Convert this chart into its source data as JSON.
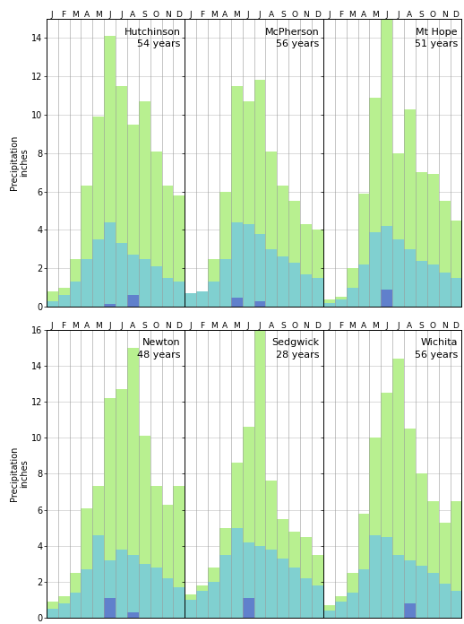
{
  "stations": [
    {
      "name": "Hutchinson",
      "years": "54 years",
      "row": 0,
      "col": 0,
      "ylim": [
        0,
        15
      ],
      "yticks": [
        0,
        2,
        4,
        6,
        8,
        10,
        12,
        14
      ],
      "green": [
        0.8,
        1.0,
        2.5,
        6.3,
        9.9,
        14.1,
        11.5,
        9.5,
        10.7,
        8.1,
        6.3,
        5.8
      ],
      "cyan": [
        0.3,
        0.6,
        1.3,
        2.5,
        3.5,
        4.4,
        3.3,
        2.7,
        2.5,
        2.1,
        1.5,
        1.3
      ],
      "blue": [
        0.0,
        0.0,
        0.0,
        0.0,
        0.0,
        0.15,
        0.0,
        0.6,
        0.0,
        0.0,
        0.0,
        0.0
      ]
    },
    {
      "name": "McPherson",
      "years": "56 years",
      "row": 0,
      "col": 1,
      "ylim": [
        0,
        15
      ],
      "yticks": [
        0,
        2,
        4,
        6,
        8,
        10,
        12,
        14
      ],
      "green": [
        0.5,
        0.8,
        2.5,
        6.0,
        11.5,
        10.7,
        11.8,
        8.1,
        6.3,
        5.5,
        4.3,
        4.0
      ],
      "cyan": [
        0.7,
        0.8,
        1.3,
        2.5,
        4.4,
        4.3,
        3.8,
        3.0,
        2.6,
        2.3,
        1.7,
        1.5
      ],
      "blue": [
        0.0,
        0.0,
        0.0,
        0.0,
        0.45,
        0.0,
        0.3,
        0.0,
        0.0,
        0.0,
        0.0,
        0.0
      ]
    },
    {
      "name": "Mt Hope",
      "years": "51 years",
      "row": 0,
      "col": 2,
      "ylim": [
        0,
        15
      ],
      "yticks": [
        0,
        2,
        4,
        6,
        8,
        10,
        12,
        14
      ],
      "green": [
        0.4,
        0.5,
        2.0,
        5.9,
        10.9,
        15.0,
        8.0,
        10.3,
        7.0,
        6.9,
        5.5,
        4.5
      ],
      "cyan": [
        0.2,
        0.4,
        1.0,
        2.2,
        3.9,
        4.2,
        3.5,
        3.0,
        2.4,
        2.2,
        1.8,
        1.5
      ],
      "blue": [
        0.0,
        0.0,
        0.0,
        0.0,
        0.0,
        0.9,
        0.0,
        0.0,
        0.0,
        0.0,
        0.0,
        0.0
      ]
    },
    {
      "name": "Newton",
      "years": "48 years",
      "row": 1,
      "col": 0,
      "ylim": [
        0,
        16
      ],
      "yticks": [
        0,
        2,
        4,
        6,
        8,
        10,
        12,
        14,
        16
      ],
      "green": [
        0.9,
        1.2,
        2.5,
        6.1,
        7.3,
        12.2,
        12.7,
        15.0,
        10.1,
        7.3,
        6.3,
        7.3
      ],
      "cyan": [
        0.5,
        0.8,
        1.4,
        2.7,
        4.6,
        3.2,
        3.8,
        3.5,
        3.0,
        2.8,
        2.2,
        1.7
      ],
      "blue": [
        0.0,
        0.0,
        0.0,
        0.0,
        0.0,
        1.1,
        0.0,
        0.3,
        0.0,
        0.0,
        0.0,
        0.0
      ]
    },
    {
      "name": "Sedgwick",
      "years": "28 years",
      "row": 1,
      "col": 1,
      "ylim": [
        0,
        16
      ],
      "yticks": [
        0,
        2,
        4,
        6,
        8,
        10,
        12,
        14,
        16
      ],
      "green": [
        1.3,
        1.8,
        2.8,
        5.0,
        8.6,
        10.6,
        16.7,
        7.6,
        5.5,
        4.8,
        4.5,
        3.5
      ],
      "cyan": [
        1.0,
        1.5,
        2.0,
        3.5,
        5.0,
        4.2,
        4.0,
        3.8,
        3.3,
        2.8,
        2.2,
        1.8
      ],
      "blue": [
        0.0,
        0.0,
        0.0,
        0.0,
        0.0,
        1.1,
        0.0,
        0.0,
        0.0,
        0.0,
        0.0,
        0.0
      ]
    },
    {
      "name": "Wichita",
      "years": "56 years",
      "row": 1,
      "col": 2,
      "ylim": [
        0,
        16
      ],
      "yticks": [
        0,
        2,
        4,
        6,
        8,
        10,
        12,
        14,
        16
      ],
      "green": [
        0.7,
        1.2,
        2.5,
        5.8,
        10.0,
        12.5,
        14.4,
        10.5,
        8.0,
        6.5,
        5.3,
        6.5
      ],
      "cyan": [
        0.4,
        0.9,
        1.4,
        2.7,
        4.6,
        4.5,
        3.5,
        3.2,
        2.9,
        2.5,
        1.9,
        1.5
      ],
      "blue": [
        0.0,
        0.0,
        0.0,
        0.0,
        0.0,
        0.0,
        0.0,
        0.8,
        0.0,
        0.0,
        0.0,
        0.0
      ]
    }
  ],
  "months": [
    "J",
    "F",
    "M",
    "A",
    "M",
    "J",
    "J",
    "A",
    "S",
    "O",
    "N",
    "D"
  ],
  "green_color": "#b8f090",
  "cyan_color": "#80d0d0",
  "blue_color": "#6080cc",
  "ylabel": "Precipitation\ninches",
  "bg_color": "#ffffff"
}
